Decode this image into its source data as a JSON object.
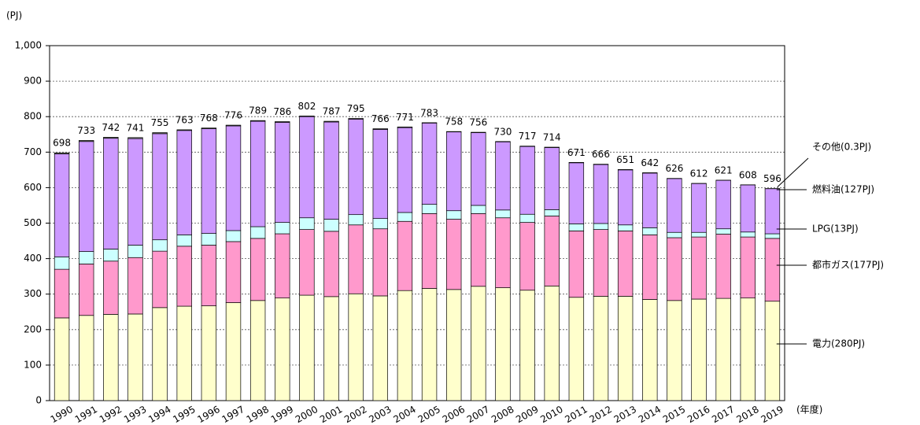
{
  "chart_data": {
    "type": "stacked_bar",
    "y_label": "(PJ)",
    "x_label": "(年度)",
    "categories": [
      "1990",
      "1991",
      "1992",
      "1993",
      "1994",
      "1995",
      "1996",
      "1997",
      "1998",
      "1999",
      "2000",
      "2001",
      "2002",
      "2003",
      "2004",
      "2005",
      "2006",
      "2007",
      "2008",
      "2009",
      "2010",
      "2011",
      "2012",
      "2013",
      "2014",
      "2015",
      "2016",
      "2017",
      "2018",
      "2019"
    ],
    "series": [
      {
        "name": "電力(280PJ)",
        "color": "#ffffcc",
        "values": [
          233,
          240,
          243,
          244,
          262,
          266,
          267,
          276,
          282,
          289,
          297,
          293,
          301,
          295,
          310,
          316,
          313,
          322,
          318,
          311,
          323,
          291,
          294,
          294,
          285,
          282,
          286,
          288,
          289,
          280
        ]
      },
      {
        "name": "都市ガス(177PJ)",
        "color": "#ff99cc",
        "values": [
          137,
          145,
          150,
          159,
          159,
          169,
          171,
          172,
          175,
          181,
          185,
          184,
          194,
          189,
          195,
          211,
          198,
          205,
          197,
          191,
          197,
          187,
          188,
          184,
          182,
          177,
          175,
          181,
          172,
          177
        ]
      },
      {
        "name": "LPG(13PJ)",
        "color": "#ccffff",
        "values": [
          35,
          35,
          34,
          35,
          32,
          32,
          33,
          31,
          33,
          32,
          33,
          34,
          29,
          29,
          25,
          26,
          24,
          23,
          22,
          23,
          18,
          20,
          17,
          17,
          20,
          15,
          13,
          15,
          14,
          13
        ]
      },
      {
        "name": "燃料油(127PJ)",
        "color": "#cc99ff",
        "values": [
          290,
          310,
          312,
          300,
          299,
          294,
          295,
          295,
          297,
          282,
          285,
          274,
          269,
          251,
          239,
          229,
          222,
          205,
          192,
          191,
          175,
          172,
          166,
          155,
          154,
          151.5,
          137.5,
          136.5,
          132.7,
          127
        ]
      },
      {
        "name": "その他(0.3PJ)",
        "color": "#808080",
        "values": [
          3,
          3,
          3,
          3,
          3,
          2,
          2,
          2,
          2,
          2,
          2,
          2,
          2,
          2,
          2,
          1,
          1,
          1,
          1,
          1,
          1,
          1,
          1,
          1,
          1,
          0.5,
          0.5,
          0.5,
          0.3,
          0.3
        ]
      }
    ],
    "totals": [
      698,
      733,
      742,
      741,
      755,
      763,
      768,
      776,
      789,
      786,
      802,
      787,
      795,
      766,
      771,
      783,
      758,
      756,
      730,
      717,
      714,
      671,
      666,
      651,
      642,
      626,
      612,
      621,
      608,
      596
    ],
    "ylim": [
      0,
      1000
    ],
    "yticks": [
      0,
      100,
      200,
      300,
      400,
      500,
      600,
      700,
      800,
      900,
      {
        "value": 1000,
        "label": "1,000"
      }
    ],
    "grid": true
  }
}
